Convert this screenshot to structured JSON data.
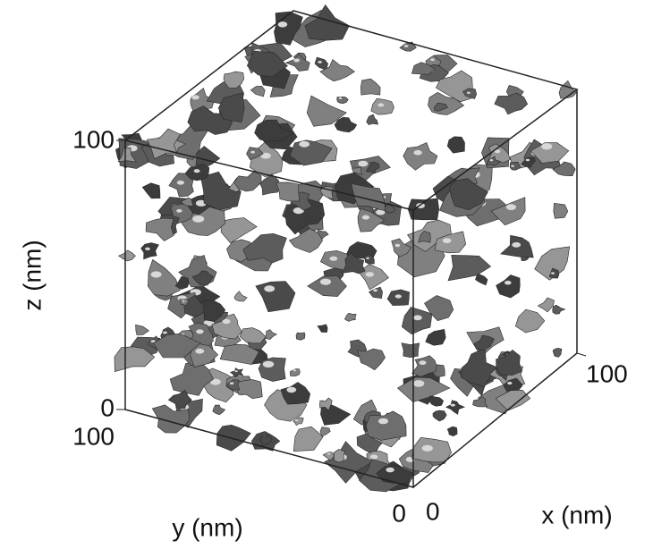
{
  "axes": {
    "z": {
      "label": "z (nm)",
      "min": "0",
      "max": "100"
    },
    "y": {
      "label": "y (nm)",
      "min": "0",
      "max": "100"
    },
    "x": {
      "label": "x (nm)",
      "min": "0",
      "max": "100"
    }
  }
}
